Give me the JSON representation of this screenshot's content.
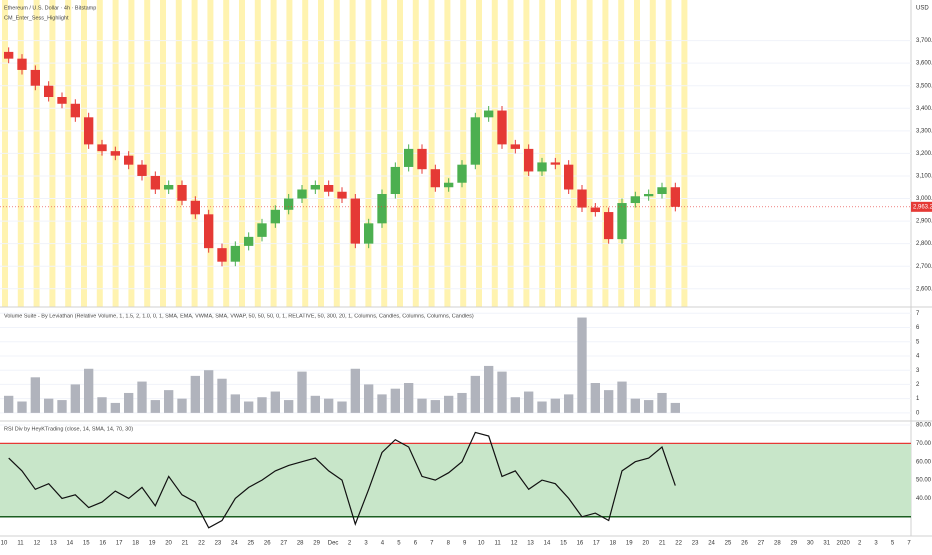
{
  "chart_data": [
    {
      "type": "candlestick",
      "title": "Ethereum / U.S. Dollar · 4h · Bitstamp",
      "subtitle": "CM_Enter_Sess_Highlight",
      "axis_label": "USD",
      "up_color": "#4caf50",
      "down_color": "#e53935",
      "open": [
        3650,
        3620,
        3570,
        3500,
        3450,
        3420,
        3360,
        3240,
        3210,
        3190,
        3150,
        3100,
        3040,
        3060,
        2990,
        2930,
        2780,
        2720,
        2790,
        2830,
        2890,
        2950,
        3000,
        3040,
        3060,
        3030,
        3000,
        2800,
        2890,
        3020,
        3140,
        3220,
        3130,
        3050,
        3070,
        3150,
        3360,
        3390,
        3240,
        3220,
        3120,
        3160,
        3150,
        3040,
        2960,
        2940,
        2820,
        2980,
        3010,
        3020,
        3050
      ],
      "high": [
        3670,
        3640,
        3590,
        3520,
        3470,
        3440,
        3380,
        3260,
        3230,
        3210,
        3170,
        3120,
        3080,
        3080,
        3010,
        2950,
        2800,
        2810,
        2850,
        2910,
        2970,
        3020,
        3060,
        3080,
        3080,
        3050,
        3020,
        2910,
        3040,
        3160,
        3240,
        3240,
        3150,
        3090,
        3170,
        3380,
        3410,
        3410,
        3260,
        3240,
        3180,
        3180,
        3170,
        3060,
        2980,
        2960,
        3000,
        3030,
        3040,
        3070,
        3070
      ],
      "low": [
        3600,
        3550,
        3480,
        3430,
        3400,
        3340,
        3220,
        3190,
        3170,
        3130,
        3080,
        3020,
        3020,
        2970,
        2910,
        2760,
        2700,
        2700,
        2770,
        2810,
        2870,
        2930,
        2980,
        3020,
        3010,
        2980,
        2780,
        2780,
        2870,
        3000,
        3120,
        3110,
        3030,
        3030,
        3050,
        3130,
        3340,
        3220,
        3200,
        3100,
        3100,
        3130,
        3020,
        2940,
        2920,
        2800,
        2800,
        2960,
        2990,
        3000,
        2943
      ],
      "close": [
        3620,
        3570,
        3500,
        3450,
        3420,
        3360,
        3240,
        3210,
        3190,
        3150,
        3100,
        3040,
        3060,
        2990,
        2930,
        2780,
        2720,
        2790,
        2830,
        2890,
        2950,
        3000,
        3040,
        3060,
        3030,
        3000,
        2800,
        2890,
        3020,
        3140,
        3220,
        3130,
        3050,
        3070,
        3150,
        3360,
        3390,
        3240,
        3220,
        3120,
        3160,
        3150,
        3040,
        2960,
        2940,
        2820,
        2980,
        3010,
        3020,
        3050,
        2963.2
      ],
      "last_value_label": "2,963.2",
      "ylim": [
        2528,
        3880
      ],
      "yticks": [
        {
          "value": 2600,
          "label": "2,600.0"
        },
        {
          "value": 2700,
          "label": "2,700.0"
        },
        {
          "value": 2800,
          "label": "2,800.0"
        },
        {
          "value": 2900,
          "label": "2,900.0"
        },
        {
          "value": 3000,
          "label": "3,000.0"
        },
        {
          "value": 3100,
          "label": "3,100.0"
        },
        {
          "value": 3200,
          "label": "3,200.0"
        },
        {
          "value": 3300,
          "label": "3,300.0"
        },
        {
          "value": 3400,
          "label": "3,400.0"
        },
        {
          "value": 3500,
          "label": "3,500.0"
        },
        {
          "value": 3600,
          "label": "3,600.0"
        },
        {
          "value": 3700,
          "label": "3,700.0"
        }
      ]
    },
    {
      "type": "bar",
      "title": "Volume Suite - By Leviathan (Relative Volume, 1, 1.5, 2, 1.0, 0, 1, SMA, EMA, VWMA, SMA, VWAP, 50, 50, 50, 0, 1, RELATIVE, 50, 300, 20, 1, Columns, Candles, Columns, Columns, Candles)",
      "color": "#b0b3bc",
      "values": [
        1.2,
        0.8,
        2.5,
        1.0,
        0.9,
        2.0,
        3.1,
        1.1,
        0.7,
        1.4,
        2.2,
        0.9,
        1.6,
        1.0,
        2.6,
        3.0,
        2.4,
        1.3,
        0.8,
        1.1,
        1.5,
        0.9,
        2.9,
        1.2,
        1.0,
        0.8,
        3.1,
        2.0,
        1.3,
        1.7,
        2.1,
        1.0,
        0.9,
        1.2,
        1.4,
        2.6,
        3.3,
        2.9,
        1.1,
        1.5,
        0.8,
        1.0,
        1.3,
        6.7,
        2.1,
        1.6,
        2.2,
        1.0,
        0.9,
        1.4,
        0.7
      ],
      "ylim": [
        -0.5,
        7.3
      ],
      "yticks": [
        0,
        1,
        2,
        3,
        4,
        5,
        6,
        7
      ]
    },
    {
      "type": "line",
      "title": "RSI Div by HeyKTrading (close, 14, SMA, 14, 70, 30)",
      "color": "#111111",
      "values": [
        62,
        55,
        45,
        48,
        40,
        42,
        35,
        38,
        44,
        40,
        46,
        36,
        52,
        42,
        38,
        24,
        28,
        40,
        46,
        50,
        55,
        58,
        60,
        62,
        55,
        50,
        26,
        45,
        65,
        72,
        68,
        52,
        50,
        54,
        60,
        76,
        74,
        52,
        55,
        45,
        50,
        48,
        40,
        30,
        32,
        28,
        55,
        60,
        62,
        68,
        47
      ],
      "upper": 70,
      "lower": 30,
      "upper_color": "#e53935",
      "lower_color": "#1b5e20",
      "band_color": "#c8e6c9",
      "ylim": [
        22.8,
        81.1
      ],
      "yticks": [
        {
          "value": 40,
          "label": "40.00"
        },
        {
          "value": 50,
          "label": "50.00"
        },
        {
          "value": 60,
          "label": "60.00"
        },
        {
          "value": 70,
          "label": "70.00"
        },
        {
          "value": 80,
          "label": "80.00"
        }
      ],
      "x_labels": [
        "10",
        "11",
        "12",
        "13",
        "14",
        "15",
        "16",
        "17",
        "18",
        "19",
        "20",
        "21",
        "22",
        "23",
        "24",
        "25",
        "26",
        "27",
        "28",
        "29",
        "Dec",
        "2",
        "3",
        "4",
        "5",
        "6",
        "7",
        "8",
        "9",
        "10",
        "11",
        "12",
        "13",
        "14",
        "15",
        "16",
        "17",
        "18",
        "19",
        "20",
        "21",
        "22",
        "23",
        "24",
        "25",
        "26",
        "27",
        "28",
        "29",
        "30",
        "31",
        "2020",
        "2",
        "3",
        "5",
        "7"
      ]
    }
  ]
}
